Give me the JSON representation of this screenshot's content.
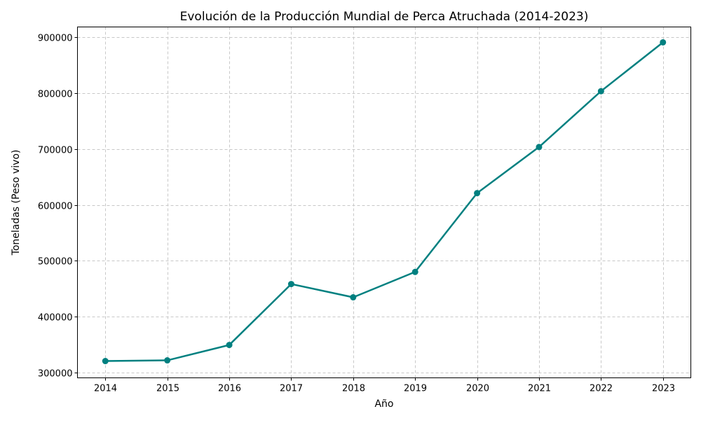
{
  "chart_data": {
    "type": "line",
    "title": "Evolución de la Producción Mundial de Perca Atruchada (2014-2023)",
    "xlabel": "Año",
    "ylabel": "Toneladas (Peso vivo)",
    "x": [
      2014,
      2015,
      2016,
      2017,
      2018,
      2019,
      2020,
      2021,
      2022,
      2023
    ],
    "series": [
      {
        "values": [
          320100,
          321300,
          348900,
          458100,
          434300,
          479800,
          621000,
          703700,
          803700,
          891200
        ]
      }
    ],
    "xticks": [
      "2014",
      "2015",
      "2016",
      "2017",
      "2018",
      "2019",
      "2020",
      "2021",
      "2022",
      "2023"
    ],
    "yticks": [
      "300000",
      "400000",
      "500000",
      "600000",
      "700000",
      "800000",
      "900000"
    ],
    "ytick_values": [
      300000,
      400000,
      500000,
      600000,
      700000,
      800000,
      900000
    ],
    "xlim": [
      2013.55,
      2023.45
    ],
    "ylim": [
      290000,
      918800
    ],
    "grid": true,
    "grid_style": "dashed",
    "line_color": "#008080",
    "marker": "circle"
  }
}
